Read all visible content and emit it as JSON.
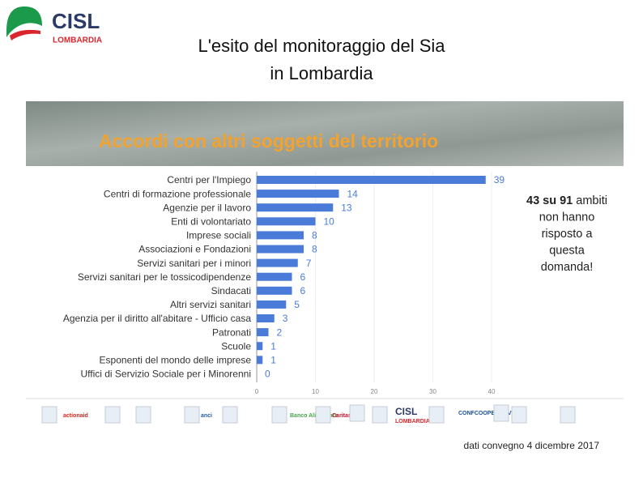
{
  "logo": {
    "name": "CISL",
    "region": "LOMBARDIA"
  },
  "header": {
    "title_lines": [
      "L'esito del monitoraggio del Sia",
      "in Lombardia"
    ]
  },
  "chart_data": {
    "type": "hbar",
    "title": "Accordi con altri soggetti del territorio",
    "categories": [
      "Centri per l'Impiego",
      "Centri di formazione professionale",
      "Agenzie per il lavoro",
      "Enti di volontariato",
      "Imprese sociali",
      "Associazioni e Fondazioni",
      "Servizi sanitari per i minori",
      "Servizi sanitari per le tossicodipendenze",
      "Sindacati",
      "Altri servizi sanitari",
      "Agenzia per il diritto all'abitare - Ufficio casa",
      "Patronati",
      "Scuole",
      "Esponenti del mondo delle imprese",
      "Uffici di Servizio Sociale per i Minorenni"
    ],
    "values": [
      39,
      14,
      13,
      10,
      8,
      8,
      7,
      6,
      6,
      5,
      3,
      2,
      1,
      1,
      0
    ],
    "color": "#4a7bd9",
    "xlim": [
      0,
      42
    ],
    "xticks": [
      0,
      10,
      20,
      30,
      40
    ],
    "grid": true,
    "annotation": {
      "bold": "43 su 91",
      "lines": [
        " ambiti",
        "non hanno",
        "risposto a",
        "questa",
        "domanda!"
      ]
    }
  },
  "sponsors": [
    "actionaid",
    "anci",
    "Banco Alimentare",
    "Caritas",
    "CISL",
    "LOMBARDIA",
    "CONFCOOPERATIVE"
  ],
  "footer": "dati convegno  4 dicembre 2017"
}
